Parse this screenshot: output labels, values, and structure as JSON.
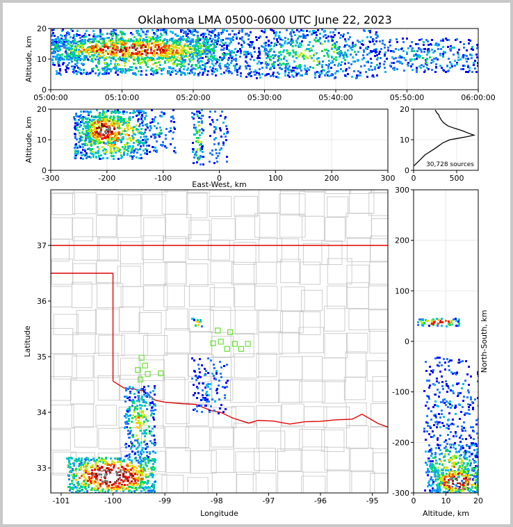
{
  "title": "Oklahoma LMA 0500-0600 UTC June 22, 2023",
  "colors": {
    "state_border": "#e00000",
    "county_lines": "#c8c8c8",
    "station": "#66e033",
    "grid": "#e8e8e8",
    "density_scale": [
      "#0000ff",
      "#2277ff",
      "#00bbee",
      "#00dd66",
      "#bbee00",
      "#ffcc00",
      "#ff5500",
      "#ee0000",
      "#aa0000",
      "#777777",
      "#ffffff"
    ]
  },
  "chart_data": [
    {
      "id": "time_height",
      "type": "heatmap",
      "title": "",
      "xlabel": "",
      "ylabel": "Altitude, km",
      "xlim": [
        "05:00:00",
        "06:00:00"
      ],
      "ylim": [
        0,
        20
      ],
      "x_ticks": [
        "05:00:00",
        "05:10:00",
        "05:20:00",
        "05:30:00",
        "05:40:00",
        "05:50:00",
        "06:00:00"
      ],
      "y_ticks": [
        0,
        10,
        20
      ],
      "regions": [
        {
          "x_minutes": [
            0,
            26
          ],
          "y_km": [
            5,
            20
          ],
          "intensity": 0.55
        },
        {
          "x_minutes": [
            0,
            23
          ],
          "y_km": [
            10,
            17
          ],
          "intensity": 0.85
        },
        {
          "x_minutes": [
            26,
            46
          ],
          "y_km": [
            4,
            20
          ],
          "intensity": 0.35
        },
        {
          "x_minutes": [
            46,
            60
          ],
          "y_km": [
            6,
            17
          ],
          "intensity": 0.25
        }
      ]
    },
    {
      "id": "east_west_altitude",
      "type": "heatmap",
      "xlabel": "East-West, km",
      "ylabel": "Altitude, km",
      "xlim": [
        -300,
        300
      ],
      "ylim": [
        0,
        20
      ],
      "x_ticks": [
        -300,
        -200,
        -100,
        0,
        100,
        200,
        300
      ],
      "y_ticks": [
        0,
        10,
        20
      ],
      "regions": [
        {
          "x_km": [
            -260,
            -130
          ],
          "y_km": [
            4,
            20
          ],
          "intensity": 0.7
        },
        {
          "x_km": [
            -240,
            -170
          ],
          "y_km": [
            9,
            18
          ],
          "intensity": 1.0
        },
        {
          "x_km": [
            -130,
            -80
          ],
          "y_km": [
            6,
            20
          ],
          "intensity": 0.2
        },
        {
          "x_km": [
            -50,
            -30
          ],
          "y_km": [
            1,
            20
          ],
          "intensity": 0.45
        },
        {
          "x_km": [
            -20,
            15
          ],
          "y_km": [
            2,
            20
          ],
          "intensity": 0.15
        }
      ]
    },
    {
      "id": "altitude_histogram",
      "type": "line",
      "xlabel": "",
      "ylabel": "",
      "xlim": [
        0,
        750
      ],
      "ylim": [
        0,
        20
      ],
      "x_ticks": [
        0,
        500
      ],
      "y_ticks": [
        0,
        10,
        20
      ],
      "annotation": "30,728 sources",
      "x": [
        5,
        60,
        130,
        240,
        290,
        340,
        420,
        520,
        620,
        700,
        650,
        560,
        470,
        400,
        350,
        320,
        300,
        290,
        270,
        260,
        250
      ],
      "y": [
        1.5,
        3,
        5,
        7,
        8,
        9,
        10,
        10.5,
        11,
        11.5,
        12,
        13,
        13.8,
        14.5,
        15.5,
        16.5,
        17.5,
        18.2,
        18.8,
        19.3,
        19.7
      ]
    },
    {
      "id": "plan_view",
      "type": "heatmap",
      "xlabel": "Longitude",
      "ylabel": "Latitude",
      "xlim": [
        -101.2,
        -94.7
      ],
      "ylim": [
        32.55,
        38
      ],
      "x_ticks": [
        -101,
        -100,
        -99,
        -98,
        -97,
        -96,
        -95
      ],
      "y_ticks": [
        33,
        34,
        35,
        36,
        37
      ],
      "regions": [
        {
          "lon": [
            -100.9,
            -99.2
          ],
          "lat": [
            32.55,
            33.2
          ],
          "intensity": 1.0
        },
        {
          "lon": [
            -99.8,
            -99.2
          ],
          "lat": [
            33.2,
            34.5
          ],
          "intensity": 0.45
        },
        {
          "lon": [
            -98.5,
            -97.8
          ],
          "lat": [
            34.0,
            35.0
          ],
          "intensity": 0.15
        },
        {
          "lon": [
            -98.5,
            -98.3
          ],
          "lat": [
            35.55,
            35.7
          ],
          "intensity": 0.6
        }
      ],
      "stations": [
        {
          "lon": -97.98,
          "lat": 35.47
        },
        {
          "lon": -97.74,
          "lat": 35.44
        },
        {
          "lon": -98.07,
          "lat": 35.24
        },
        {
          "lon": -97.92,
          "lat": 35.27
        },
        {
          "lon": -97.65,
          "lat": 35.23
        },
        {
          "lon": -97.53,
          "lat": 35.14
        },
        {
          "lon": -97.4,
          "lat": 35.23
        },
        {
          "lon": -97.8,
          "lat": 35.14
        },
        {
          "lon": -99.45,
          "lat": 34.98
        },
        {
          "lon": -99.38,
          "lat": 34.84
        },
        {
          "lon": -99.52,
          "lat": 34.76
        },
        {
          "lon": -99.33,
          "lat": 34.69
        },
        {
          "lon": -99.08,
          "lat": 34.7
        },
        {
          "lon": -99.47,
          "lat": 34.59
        }
      ]
    },
    {
      "id": "altitude_north_south",
      "type": "heatmap",
      "xlabel": "Altitude, km",
      "ylabel": "North-South, km",
      "xlim": [
        0,
        20
      ],
      "ylim": [
        -300,
        300
      ],
      "x_ticks": [
        0,
        10,
        20
      ],
      "y_ticks": [
        -300,
        -200,
        -100,
        0,
        100,
        200,
        300
      ],
      "regions": [
        {
          "x_km": [
            1,
            14
          ],
          "y_km": [
            32,
            48
          ],
          "intensity": 0.8
        },
        {
          "x_km": [
            3,
            20
          ],
          "y_km": [
            -300,
            -200
          ],
          "intensity": 0.5
        },
        {
          "x_km": [
            6,
            20
          ],
          "y_km": [
            -300,
            -250
          ],
          "intensity": 1.0
        },
        {
          "x_km": [
            3,
            20
          ],
          "y_km": [
            -200,
            -30
          ],
          "intensity": 0.12
        }
      ]
    }
  ]
}
